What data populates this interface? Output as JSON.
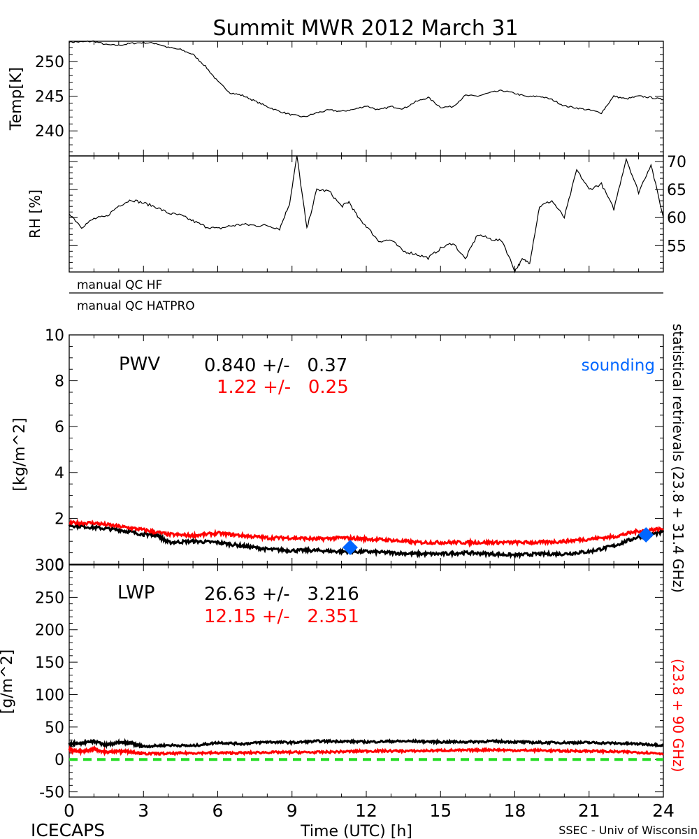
{
  "title": "Summit MWR 2012 March 31",
  "footer": {
    "left": "ICECAPS",
    "center": "Time (UTC) [h]",
    "right": "SSEC - Univ of Wisconsin"
  },
  "colors": {
    "primary": "#000000",
    "secondary": "#ff0000",
    "sounding": "#0066ff",
    "zero_line": "#22dd22"
  },
  "qc": {
    "hf_label": "manual QC HF",
    "hatpro_label": "manual QC HATPRO"
  },
  "right_label": {
    "part1": "statistical retrievals (23.8 + 31.4 GHz)",
    "part2": "(23.8 + 90 GHz)"
  },
  "chart_data": [
    {
      "id": "temp",
      "type": "line",
      "ylabel": "Temp[K]",
      "ylim": [
        236.4,
        252.9
      ],
      "yticks": [
        240,
        245,
        250
      ],
      "ytick_side": "left",
      "xlim": [
        0,
        24
      ],
      "series": [
        {
          "name": "Temperature",
          "color": "#000000",
          "x": [
            0,
            0.5,
            1,
            1.5,
            2,
            2.5,
            3,
            3.5,
            4,
            4.5,
            5,
            5.5,
            6,
            6.5,
            7,
            7.5,
            8,
            8.5,
            9,
            9.5,
            10,
            10.5,
            11,
            11.5,
            12,
            12.5,
            13,
            13.5,
            14,
            14.5,
            15,
            15.5,
            16,
            16.5,
            17,
            17.5,
            18,
            18.5,
            19,
            19.5,
            20,
            20.5,
            21,
            21.5,
            22,
            22.5,
            23,
            23.5,
            24
          ],
          "y": [
            252.8,
            252.8,
            252.9,
            252.4,
            252.3,
            252.6,
            252.7,
            252.6,
            252.0,
            251.7,
            251.0,
            249.3,
            247.1,
            245.5,
            245.1,
            244.3,
            243.5,
            242.8,
            242.3,
            242.0,
            242.6,
            243.0,
            242.8,
            243.1,
            243.6,
            243.0,
            243.5,
            243.2,
            244.2,
            244.8,
            243.4,
            243.5,
            245.1,
            245.0,
            245.5,
            245.8,
            245.4,
            244.9,
            245.0,
            244.5,
            243.6,
            243.3,
            243.0,
            242.6,
            245.0,
            244.6,
            245.0,
            244.8,
            244.5
          ]
        }
      ]
    },
    {
      "id": "rh",
      "type": "line",
      "ylabel": "RH [%]",
      "ylim": [
        50.3,
        71.0
      ],
      "yticks": [
        55,
        60,
        65,
        70
      ],
      "ytick_side": "right",
      "xlim": [
        0,
        24
      ],
      "series": [
        {
          "name": "Relative humidity",
          "color": "#000000",
          "x": [
            0,
            0.5,
            1,
            1.5,
            2,
            2.5,
            3,
            3.5,
            4,
            4.5,
            5,
            5.5,
            6,
            6.5,
            7,
            7.5,
            8,
            8.5,
            8.9,
            9.2,
            9.6,
            10,
            10.5,
            11,
            11.3,
            11.7,
            12,
            12.5,
            13,
            13.5,
            14,
            14.5,
            15,
            15.5,
            16,
            16.5,
            17,
            17.5,
            18,
            18.3,
            18.6,
            19,
            19.5,
            20,
            20.5,
            21,
            21.5,
            22,
            22.5,
            23,
            23.5,
            24
          ],
          "y": [
            60.8,
            58.3,
            59.8,
            60.2,
            62.1,
            63.2,
            62.6,
            61.9,
            60.8,
            60.4,
            59.4,
            58.4,
            58.0,
            58.5,
            58.8,
            58.6,
            58.6,
            58.0,
            62.5,
            71.0,
            58.0,
            65.0,
            64.7,
            62.0,
            62.8,
            59.8,
            58.5,
            55.8,
            56.0,
            54.0,
            53.5,
            52.8,
            54.5,
            55.5,
            52.6,
            57.0,
            56.2,
            55.8,
            50.5,
            52.5,
            52.0,
            62.0,
            63.0,
            60.0,
            68.5,
            65.0,
            66.0,
            61.5,
            70.5,
            64.5,
            69.5,
            60.0
          ]
        }
      ]
    },
    {
      "id": "pwv",
      "type": "line",
      "ylabel": "[kg/m^2]",
      "ylim": [
        0,
        10
      ],
      "yticks": [
        0,
        2,
        4,
        6,
        8,
        10
      ],
      "ytick_side": "left",
      "xlim": [
        0,
        24
      ],
      "annotation": {
        "label": "PWV",
        "primary_stat": "0.840 +/-   0.37",
        "secondary_stat": "1.22 +/-   0.25",
        "sounding_label": "sounding"
      },
      "series": [
        {
          "name": "statistical retrievals (23.8 + 31.4 GHz)",
          "color": "#000000",
          "x": [
            0,
            1,
            2,
            3,
            3.5,
            4,
            5,
            6,
            7,
            8,
            9,
            10,
            11,
            12,
            13,
            14,
            15,
            16,
            17,
            18,
            19,
            20,
            21,
            22,
            23,
            24
          ],
          "y": [
            1.7,
            1.6,
            1.5,
            1.3,
            1.3,
            0.95,
            1.0,
            0.95,
            0.8,
            0.65,
            0.6,
            0.6,
            0.55,
            0.55,
            0.5,
            0.45,
            0.45,
            0.5,
            0.45,
            0.4,
            0.45,
            0.45,
            0.55,
            0.8,
            1.2,
            1.4
          ]
        },
        {
          "name": "statistical retrievals (23.8 + 90 GHz)",
          "color": "#ff0000",
          "x": [
            0,
            1,
            2,
            3,
            4,
            5,
            6,
            7,
            8,
            9,
            10,
            11,
            12,
            13,
            14,
            15,
            16,
            17,
            18,
            19,
            20,
            21,
            22,
            23,
            24
          ],
          "y": [
            1.8,
            1.8,
            1.65,
            1.5,
            1.3,
            1.25,
            1.35,
            1.25,
            1.15,
            1.15,
            1.1,
            1.15,
            1.1,
            1.05,
            0.95,
            0.95,
            0.95,
            0.95,
            0.95,
            0.95,
            1.0,
            1.1,
            1.2,
            1.45,
            1.55
          ]
        },
        {
          "name": "sounding",
          "type": "scatter",
          "color": "#0066ff",
          "x": [
            11.35,
            23.3
          ],
          "y": [
            0.73,
            1.28
          ]
        }
      ]
    },
    {
      "id": "lwp",
      "type": "line",
      "ylabel": "[g/m^2]",
      "ylim": [
        -58,
        300
      ],
      "yticks": [
        -50,
        0,
        50,
        100,
        150,
        200,
        250,
        300
      ],
      "ytick_side": "left",
      "xlim": [
        0,
        24
      ],
      "xticks": [
        0,
        3,
        6,
        9,
        12,
        15,
        18,
        21,
        24
      ],
      "xlabel": "Time (UTC) [h]",
      "annotation": {
        "label": "LWP",
        "primary_stat": "26.63 +/-   3.216",
        "secondary_stat": "12.15 +/-   2.351"
      },
      "series": [
        {
          "name": "statistical retrievals (23.8 + 31.4 GHz)",
          "color": "#000000",
          "x": [
            0,
            0.5,
            1,
            1.5,
            2,
            2.5,
            3,
            4,
            5,
            6,
            7,
            8,
            9,
            10,
            11,
            12,
            13,
            14,
            15,
            16,
            17,
            18,
            19,
            20,
            21,
            22,
            23,
            24
          ],
          "y": [
            24,
            25,
            28,
            22,
            26,
            25,
            20,
            22,
            21,
            26,
            24,
            27,
            26,
            28,
            28,
            27,
            28,
            28,
            27,
            27,
            28,
            27,
            26,
            26,
            26,
            25,
            24,
            22
          ]
        },
        {
          "name": "statistical retrievals (23.8 + 90 GHz)",
          "color": "#ff0000",
          "x": [
            0,
            0.5,
            1,
            1.5,
            2,
            2.5,
            3,
            4,
            5,
            6,
            7,
            8,
            9,
            10,
            11,
            12,
            13,
            14,
            15,
            16,
            17,
            18,
            19,
            20,
            21,
            22,
            23,
            24
          ],
          "y": [
            15,
            12,
            16,
            11,
            13,
            12,
            9,
            9,
            10,
            10,
            10,
            11,
            11,
            11,
            12,
            13,
            13,
            13,
            14,
            14,
            15,
            14,
            14,
            13,
            13,
            12,
            11,
            9
          ]
        },
        {
          "name": "zero line",
          "type": "dashed",
          "color": "#22dd22",
          "x": [
            0,
            24
          ],
          "y": [
            0,
            0
          ]
        }
      ]
    }
  ]
}
